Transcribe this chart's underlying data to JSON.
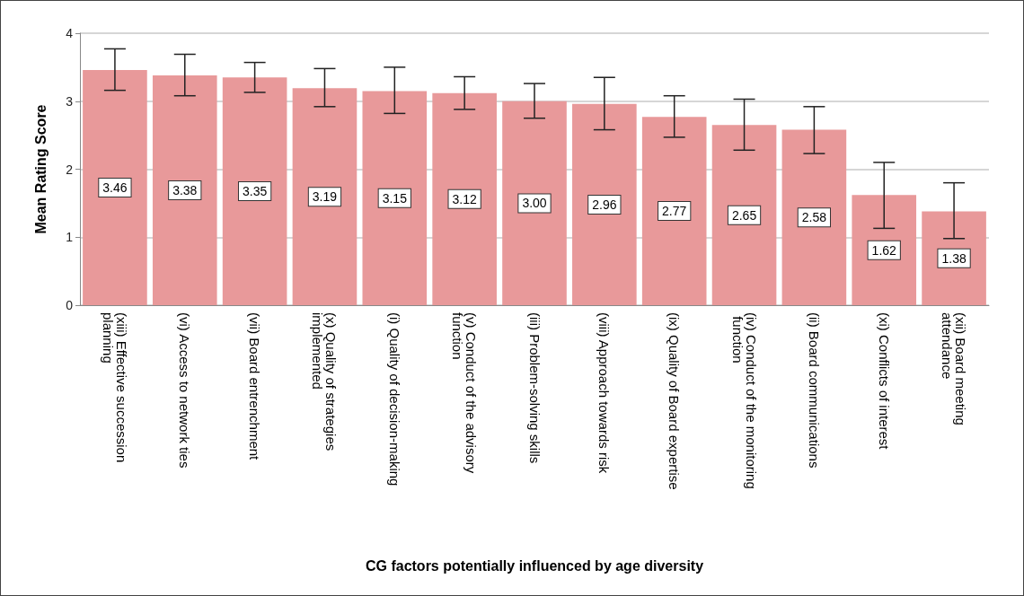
{
  "chart_data": {
    "type": "bar",
    "xlabel": "CG factors potentially influenced by age diversity",
    "ylabel": "Mean Rating Score",
    "categories": [
      "(xiii) Effective succession planning",
      "(vi) Access to network ties",
      "(vii) Board entrenchment",
      "(x) Quality of strategies implemented",
      "(i) Quality of decision-making",
      "(v) Conduct of the advisory function",
      "(iii) Problem-solving skills",
      "(viii) Approach towards risk",
      "(ix) Quality of Board expertise",
      "(iv) Conduct of the monitoring function",
      "(ii) Board communications",
      "(xi) Conflicts of interest",
      "(xii) Board meeting attendance"
    ],
    "values": [
      3.46,
      3.38,
      3.35,
      3.19,
      3.15,
      3.12,
      3.0,
      2.96,
      2.77,
      2.65,
      2.58,
      1.62,
      1.38
    ],
    "value_labels": [
      "3.46",
      "3.38",
      "3.35",
      "3.19",
      "3.15",
      "3.12",
      "3.00",
      "2.96",
      "2.77",
      "2.65",
      "2.58",
      "1.62",
      "1.38"
    ],
    "errors": [
      [
        3.16,
        3.77
      ],
      [
        3.08,
        3.69
      ],
      [
        3.13,
        3.57
      ],
      [
        2.92,
        3.48
      ],
      [
        2.82,
        3.5
      ],
      [
        2.88,
        3.36
      ],
      [
        2.75,
        3.26
      ],
      [
        2.58,
        3.35
      ],
      [
        2.47,
        3.08
      ],
      [
        2.28,
        3.03
      ],
      [
        2.23,
        2.92
      ],
      [
        1.13,
        2.1
      ],
      [
        0.98,
        1.8
      ]
    ],
    "color": "#e8999a",
    "ylim": [
      0,
      4
    ],
    "yticks": [
      0,
      1,
      2,
      3,
      4
    ],
    "grid": "y"
  }
}
